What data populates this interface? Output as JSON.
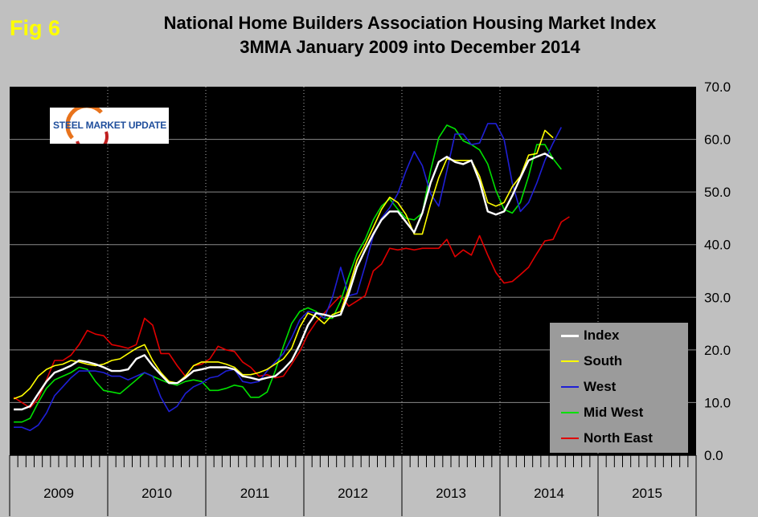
{
  "fig_label": "Fig 6",
  "title_line1": "National Home Builders Association Housing Market Index",
  "title_line2": "3MMA January 2009 into December 2014",
  "logo_text": "STEEL MARKET UPDATE",
  "colors": {
    "plot_bg": "#000000",
    "page_bg": "#c0c0c0",
    "Index": "#ffffff",
    "South": "#ffff00",
    "West": "#1f1fd6",
    "Mid West": "#00e000",
    "North East": "#e00000"
  },
  "chart_data": {
    "type": "line",
    "title": "National Home Builders Association Housing Market Index 3MMA January 2009 into December 2014",
    "xlabel": "",
    "ylabel": "",
    "ylim": [
      0,
      70
    ],
    "yticks": [
      "0.0",
      "10.0",
      "20.0",
      "30.0",
      "40.0",
      "50.0",
      "60.0",
      "70.0"
    ],
    "years": [
      "2009",
      "2010",
      "2011",
      "2012",
      "2013",
      "2014",
      "2015"
    ],
    "x_months_start": "2009-01",
    "grid": "horizontal",
    "legend_position": "bottom-right",
    "series": [
      {
        "name": "Index",
        "values": [
          8.7,
          8.7,
          9.3,
          11.7,
          14,
          15.7,
          16.3,
          17,
          18,
          17.7,
          17.3,
          16.7,
          16,
          16,
          16.3,
          18.3,
          19,
          17,
          15.3,
          13.7,
          13.7,
          14.7,
          16,
          16.3,
          16.7,
          16.7,
          16.7,
          16.3,
          15,
          14.7,
          14.3,
          14.7,
          15,
          16.3,
          18,
          21,
          24.7,
          27,
          26.7,
          26.3,
          26.7,
          30.7,
          35.7,
          39,
          42,
          44.7,
          46.3,
          46.3,
          44.3,
          42.3,
          46,
          51.7,
          55.7,
          56.7,
          55.7,
          55.3,
          56,
          52,
          46.3,
          45.7,
          46.3,
          49.3,
          52.7,
          56,
          56.7,
          57.3,
          56.3
        ]
      },
      {
        "name": "South",
        "values": [
          10.7,
          11.3,
          12.7,
          15,
          16.3,
          17,
          17.3,
          18,
          17.7,
          17.3,
          17,
          17.3,
          18,
          18.3,
          19.3,
          20.3,
          21,
          18,
          15.7,
          14,
          13.7,
          15,
          17,
          17.7,
          17.7,
          17.7,
          17.3,
          16.7,
          15.3,
          15.3,
          15.7,
          16.3,
          17.3,
          18.3,
          20.3,
          24.3,
          27,
          26.3,
          25,
          26.7,
          27.3,
          31.7,
          37,
          40,
          43.3,
          46.7,
          49,
          48,
          45.7,
          42,
          42,
          47.7,
          52.7,
          56.3,
          56,
          56,
          56,
          53,
          48,
          47.3,
          48,
          51,
          53,
          57,
          57.3,
          61.7,
          60.3
        ]
      },
      {
        "name": "West",
        "values": [
          5.3,
          5.3,
          4.7,
          5.7,
          8,
          11.3,
          13,
          14.7,
          16,
          16,
          16,
          15.7,
          15,
          15,
          14.3,
          15,
          15.7,
          15,
          11,
          8.3,
          9.3,
          11.7,
          13,
          13.7,
          14.7,
          15,
          16,
          16.3,
          14,
          13.7,
          14,
          16,
          17.7,
          19.3,
          22.3,
          25.7,
          27.3,
          27,
          26,
          30,
          35.7,
          30.3,
          30.7,
          36,
          41.7,
          45,
          47,
          49.7,
          54,
          57.7,
          55,
          49.7,
          47.3,
          54,
          61,
          61,
          59,
          59.3,
          63,
          63,
          60,
          51.7,
          46.3,
          48,
          51.7,
          56,
          59.3,
          62.3
        ]
      },
      {
        "name": "Mid West",
        "values": [
          6.3,
          6.3,
          7,
          10,
          12.7,
          14.3,
          15,
          15.7,
          16.7,
          16.3,
          14,
          12.3,
          12,
          11.7,
          13,
          14.3,
          15.7,
          15,
          14.3,
          13.7,
          13.3,
          14,
          14.3,
          14,
          12.3,
          12.3,
          12.7,
          13.3,
          13,
          11,
          11,
          12,
          16,
          20.7,
          25,
          27.3,
          28,
          27.3,
          26,
          26,
          29.3,
          34,
          38.3,
          41,
          44.7,
          47.3,
          48.7,
          46.7,
          45,
          44.7,
          46,
          54,
          60.3,
          62.7,
          62,
          59.7,
          59,
          58,
          55.3,
          50.3,
          46.7,
          46,
          48,
          53,
          59,
          59,
          56.3,
          54.3
        ]
      },
      {
        "name": "North East",
        "values": [
          11,
          10,
          9,
          10.7,
          14.3,
          18,
          18,
          19,
          21,
          23.7,
          23,
          22.7,
          21,
          20.7,
          20.3,
          21,
          26,
          24.7,
          19.3,
          19.3,
          17,
          15,
          17,
          17.3,
          18.3,
          20.7,
          20,
          19.7,
          17.7,
          16.7,
          15,
          15.3,
          14.7,
          15,
          17.3,
          19.7,
          23,
          25.3,
          27,
          28.7,
          30.3,
          28.3,
          29.3,
          30.3,
          35,
          36.3,
          39.3,
          39,
          39.3,
          39,
          39.3,
          39.3,
          39.3,
          41,
          37.7,
          39,
          38,
          41.7,
          38,
          34.7,
          32.7,
          33,
          34.3,
          35.7,
          38.3,
          40.7,
          41,
          44.3,
          45.3
        ]
      }
    ]
  }
}
